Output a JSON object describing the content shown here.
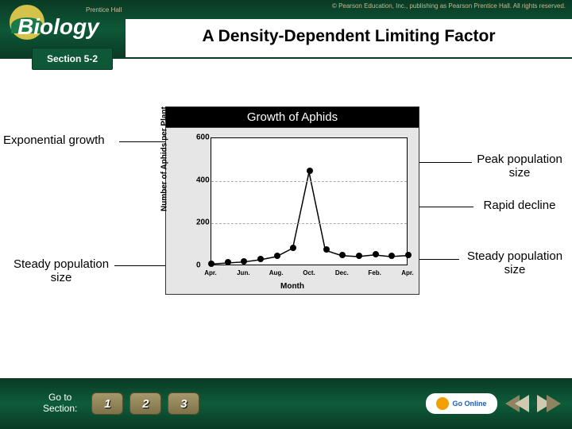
{
  "header": {
    "copyright": "© Pearson Education, Inc., publishing as Pearson Prentice Hall. All rights reserved.",
    "logo_main": "Biology",
    "logo_sub": "Prentice Hall",
    "title": "A Density-Dependent Limiting Factor",
    "section": "Section 5-2"
  },
  "annotations": {
    "exp_growth": "Exponential growth",
    "peak": "Peak population\nsize",
    "rapid": "Rapid decline",
    "steady_left": "Steady population\nsize",
    "steady_right": "Steady population\nsize"
  },
  "chart": {
    "title": "Growth of Aphids",
    "type": "line",
    "xlabel": "Month",
    "ylabel": "Number of Aphids per Plant",
    "ylim": [
      0,
      600
    ],
    "ytick_step": 200,
    "yticks": [
      0,
      200,
      400,
      600
    ],
    "xticks": [
      "Apr.",
      "Jun.",
      "Aug.",
      "Oct.",
      "Dec.",
      "Feb.",
      "Apr."
    ],
    "x_positions": [
      0,
      1,
      2,
      3,
      4,
      5,
      6,
      7,
      8,
      9,
      10,
      11,
      12
    ],
    "y_values": [
      5,
      10,
      15,
      25,
      40,
      80,
      440,
      70,
      45,
      40,
      48,
      40,
      45
    ],
    "line_color": "#000000",
    "marker_color": "#000000",
    "marker_size": 8,
    "background_color": "#ffffff",
    "panel_background": "#e6e6e6",
    "grid_color": "#aaaaaa"
  },
  "footer": {
    "goto": "Go to\nSection:",
    "nav_numbers": [
      "1",
      "2",
      "3"
    ],
    "go_online": "Go Online"
  },
  "colors": {
    "banner_green": "#0e5838",
    "pill": "#a6986a"
  }
}
